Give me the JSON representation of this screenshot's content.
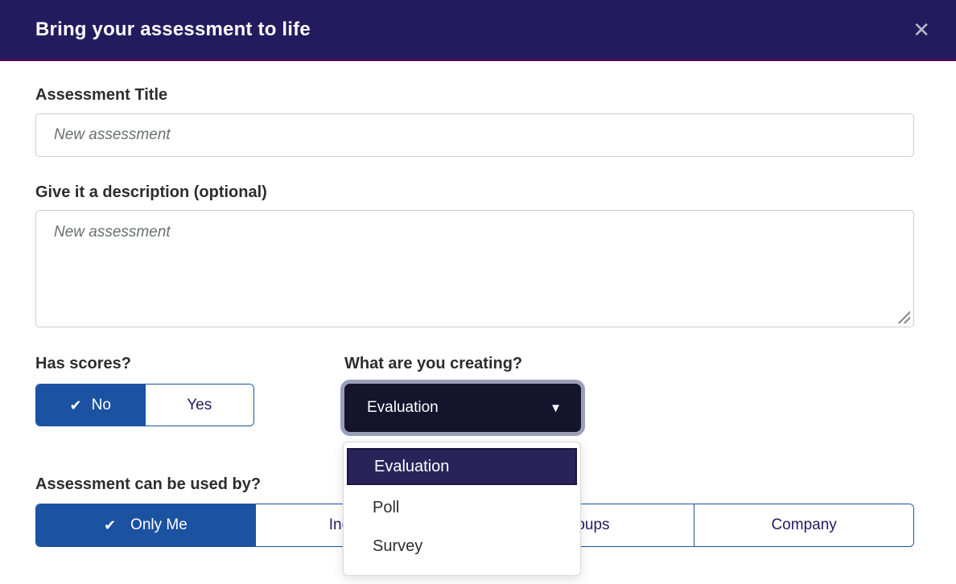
{
  "header": {
    "title": "Bring your assessment to life"
  },
  "icons": {
    "close": "✕",
    "check": "✔",
    "caret_down": "▼"
  },
  "fields": {
    "title": {
      "label": "Assessment Title",
      "placeholder": "New assessment",
      "value": ""
    },
    "description": {
      "label": "Give it a description (optional)",
      "placeholder": "New assessment",
      "value": ""
    }
  },
  "has_scores": {
    "label": "Has scores?",
    "selected": "No",
    "options": [
      {
        "label": "No",
        "selected": true
      },
      {
        "label": "Yes",
        "selected": false
      }
    ]
  },
  "creating": {
    "label": "What are you creating?",
    "selected": "Evaluation",
    "dropdown_open": true,
    "options": [
      {
        "label": "Evaluation",
        "selected": true
      },
      {
        "label": "Poll",
        "selected": false
      },
      {
        "label": "Survey",
        "selected": false
      }
    ]
  },
  "used_by": {
    "label": "Assessment can be used by?",
    "selected": "Only Me",
    "options": [
      {
        "label": "Only Me",
        "selected": true
      },
      {
        "label": "Individuals",
        "selected": false
      },
      {
        "label": "Groups",
        "selected": false
      },
      {
        "label": "Company",
        "selected": false
      }
    ]
  },
  "colors": {
    "header_bg": "#241b5e",
    "header_accent_border": "#4a1057",
    "primary_blue": "#1b52a1",
    "dark_navy_text": "#241b5e",
    "select_bg": "#15142d",
    "focus_ring": "#9aa0ba",
    "option_highlight": "#2a2359"
  }
}
